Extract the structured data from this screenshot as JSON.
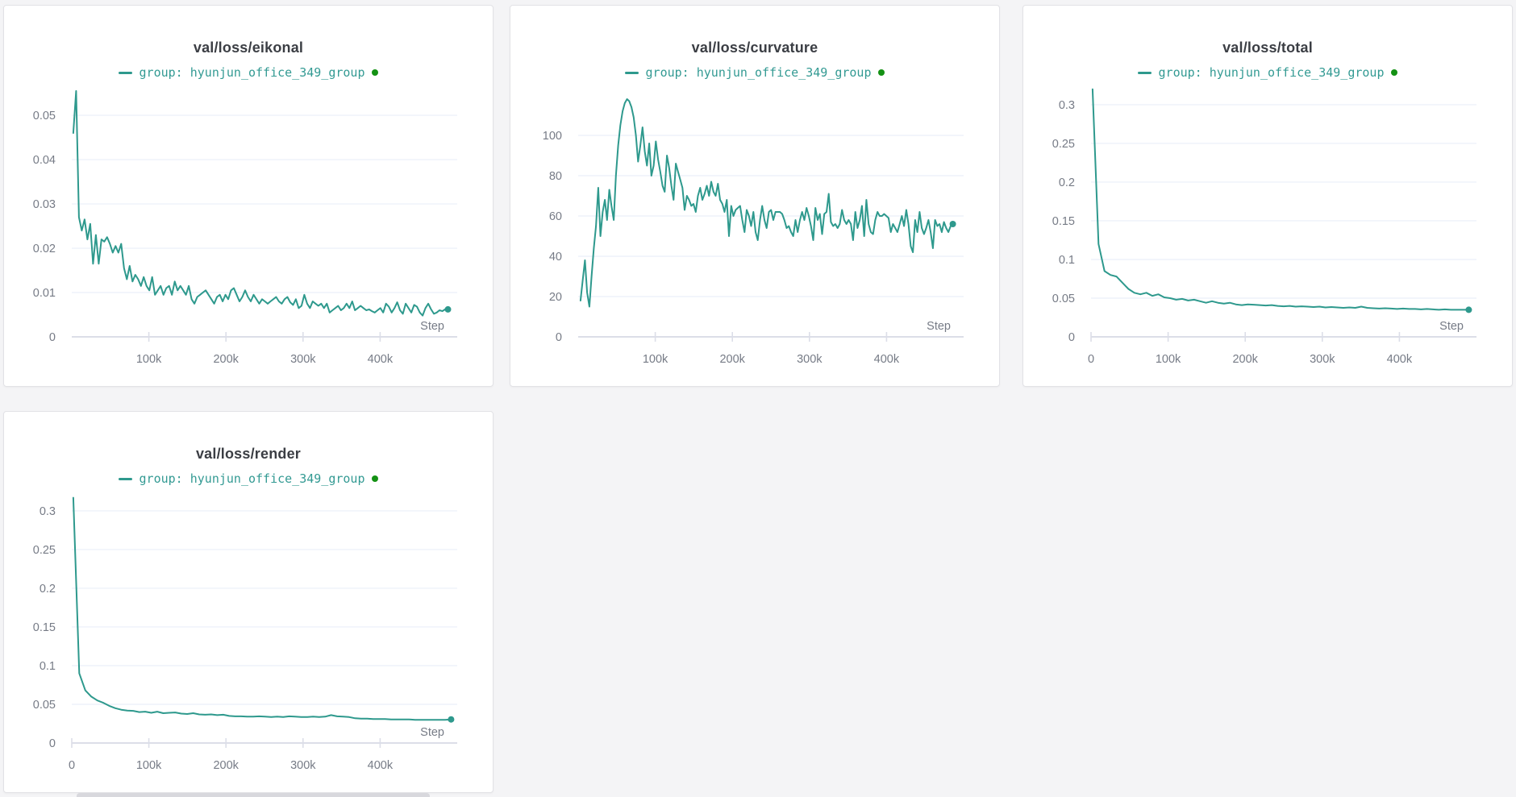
{
  "theme": {
    "line_color": "#2e998d",
    "legend_text_color": "#339a93",
    "legend_dot_color": "#149114",
    "title_color": "#3b3e44",
    "tick_label_color": "#767b86",
    "grid_color": "#edf2fa",
    "axis_color": "#dcdee8",
    "panel_background": "#ffffff",
    "panel_border": "#e2e2e6",
    "page_background": "#f4f4f6"
  },
  "chart_data": [
    {
      "type": "line",
      "title": "val/loss/eikonal",
      "legend": {
        "series_label": "group: hyunjun_office_349_group"
      },
      "xlabel": "Step",
      "grid": true,
      "legend_position": "top-center",
      "xlim": [
        0,
        500000
      ],
      "ylim": [
        0,
        0.0573
      ],
      "x_ticks": [
        {
          "label": "100k",
          "value": 100000
        },
        {
          "label": "200k",
          "value": 200000
        },
        {
          "label": "300k",
          "value": 300000
        },
        {
          "label": "400k",
          "value": 400000
        }
      ],
      "y_ticks": [
        {
          "label": "0",
          "value": 0
        },
        {
          "label": "0.01",
          "value": 0.01
        },
        {
          "label": "0.02",
          "value": 0.02
        },
        {
          "label": "0.03",
          "value": 0.03
        },
        {
          "label": "0.04",
          "value": 0.04
        },
        {
          "label": "0.05",
          "value": 0.05
        }
      ],
      "series": [
        {
          "name": "hyunjun_office_349_group",
          "x_start": 2000,
          "x_end": 488000,
          "y": [
            0.046,
            0.0555,
            0.027,
            0.024,
            0.0265,
            0.022,
            0.0255,
            0.0165,
            0.023,
            0.0165,
            0.022,
            0.0215,
            0.0225,
            0.021,
            0.019,
            0.0205,
            0.019,
            0.021,
            0.0155,
            0.013,
            0.016,
            0.0125,
            0.014,
            0.013,
            0.0115,
            0.0135,
            0.0115,
            0.0105,
            0.0135,
            0.0095,
            0.0105,
            0.0115,
            0.0095,
            0.011,
            0.0115,
            0.0095,
            0.0125,
            0.0105,
            0.0115,
            0.0105,
            0.0095,
            0.0115,
            0.0085,
            0.0075,
            0.009,
            0.0095,
            0.01,
            0.0105,
            0.0095,
            0.0085,
            0.0075,
            0.009,
            0.0095,
            0.008,
            0.0095,
            0.0085,
            0.0105,
            0.011,
            0.0095,
            0.008,
            0.009,
            0.0105,
            0.009,
            0.008,
            0.0095,
            0.0085,
            0.0075,
            0.0085,
            0.008,
            0.0075,
            0.008,
            0.0085,
            0.009,
            0.008,
            0.0075,
            0.0085,
            0.009,
            0.0078,
            0.0072,
            0.0085,
            0.0065,
            0.007,
            0.0095,
            0.0075,
            0.0065,
            0.008,
            0.0075,
            0.007,
            0.0075,
            0.0065,
            0.0075,
            0.0055,
            0.006,
            0.0065,
            0.007,
            0.006,
            0.0065,
            0.0075,
            0.0065,
            0.008,
            0.006,
            0.0065,
            0.007,
            0.0065,
            0.006,
            0.0062,
            0.0058,
            0.0055,
            0.006,
            0.0065,
            0.0055,
            0.0075,
            0.0068,
            0.0055,
            0.0065,
            0.0078,
            0.006,
            0.0052,
            0.0075,
            0.0065,
            0.0055,
            0.0072,
            0.0068,
            0.0055,
            0.0048,
            0.0065,
            0.0075,
            0.0062,
            0.0052,
            0.0055,
            0.006,
            0.0058,
            0.0062,
            0.0062
          ]
        }
      ]
    },
    {
      "type": "line",
      "title": "val/loss/curvature",
      "legend": {
        "series_label": "group: hyunjun_office_349_group"
      },
      "xlabel": "Step",
      "grid": true,
      "legend_position": "top-center",
      "xlim": [
        0,
        500000
      ],
      "ylim": [
        0,
        126
      ],
      "x_ticks": [
        {
          "label": "100k",
          "value": 100000
        },
        {
          "label": "200k",
          "value": 200000
        },
        {
          "label": "300k",
          "value": 300000
        },
        {
          "label": "400k",
          "value": 400000
        }
      ],
      "y_ticks": [
        {
          "label": "0",
          "value": 0
        },
        {
          "label": "20",
          "value": 20
        },
        {
          "label": "40",
          "value": 40
        },
        {
          "label": "60",
          "value": 60
        },
        {
          "label": "80",
          "value": 80
        },
        {
          "label": "100",
          "value": 100
        }
      ],
      "series": [
        {
          "name": "hyunjun_office_349_group",
          "x_start": 3000,
          "x_end": 486000,
          "y": [
            18,
            28,
            38,
            22,
            15,
            30,
            44,
            55,
            74,
            50,
            62,
            68,
            58,
            73,
            65,
            58,
            80,
            95,
            105,
            112,
            116,
            118,
            117,
            114,
            109,
            100,
            87,
            95,
            104,
            92,
            85,
            96,
            80,
            85,
            97,
            88,
            82,
            75,
            72,
            90,
            84,
            75,
            68,
            86,
            82,
            78,
            74,
            63,
            70,
            68,
            65,
            66,
            62,
            70,
            74,
            68,
            71,
            75,
            70,
            77,
            72,
            70,
            76,
            68,
            66,
            62,
            68,
            50,
            65,
            60,
            63,
            64,
            65,
            58,
            52,
            63,
            60,
            55,
            62,
            52,
            48,
            58,
            65,
            58,
            54,
            62,
            63,
            58,
            62,
            62,
            62,
            61,
            58,
            54,
            55,
            52,
            50,
            58,
            52,
            58,
            62,
            58,
            64,
            60,
            55,
            48,
            64,
            58,
            61,
            51,
            61,
            62,
            71,
            57,
            55,
            56,
            54,
            56,
            63,
            58,
            56,
            58,
            56,
            48,
            62,
            54,
            58,
            65,
            50,
            68,
            56,
            52,
            51,
            58,
            62,
            60,
            60,
            61,
            60,
            59,
            52,
            56,
            54,
            52,
            56,
            60,
            55,
            63,
            56,
            45,
            42,
            58,
            52,
            62,
            54,
            51,
            54,
            58,
            52,
            44,
            58,
            55,
            56,
            52,
            57,
            54,
            52,
            55,
            56
          ]
        }
      ]
    },
    {
      "type": "line",
      "title": "val/loss/total",
      "legend": {
        "series_label": "group: hyunjun_office_349_group"
      },
      "xlabel": "Step",
      "grid": true,
      "legend_position": "top-center",
      "xlim": [
        0,
        500000
      ],
      "ylim": [
        0,
        0.328
      ],
      "x_ticks": [
        {
          "label": "0",
          "value": 0
        },
        {
          "label": "100k",
          "value": 100000
        },
        {
          "label": "200k",
          "value": 200000
        },
        {
          "label": "300k",
          "value": 300000
        },
        {
          "label": "400k",
          "value": 400000
        }
      ],
      "y_ticks": [
        {
          "label": "0",
          "value": 0
        },
        {
          "label": "0.05",
          "value": 0.05
        },
        {
          "label": "0.1",
          "value": 0.1
        },
        {
          "label": "0.15",
          "value": 0.15
        },
        {
          "label": "0.2",
          "value": 0.2
        },
        {
          "label": "0.25",
          "value": 0.25
        },
        {
          "label": "0.3",
          "value": 0.3
        }
      ],
      "series": [
        {
          "name": "hyunjun_office_349_group",
          "x_start": 2000,
          "x_end": 490000,
          "y": [
            0.32,
            0.12,
            0.085,
            0.08,
            0.078,
            0.07,
            0.062,
            0.057,
            0.055,
            0.057,
            0.053,
            0.055,
            0.051,
            0.05,
            0.048,
            0.049,
            0.047,
            0.048,
            0.046,
            0.044,
            0.046,
            0.044,
            0.043,
            0.044,
            0.042,
            0.041,
            0.042,
            0.0415,
            0.041,
            0.0405,
            0.041,
            0.04,
            0.0395,
            0.04,
            0.039,
            0.0395,
            0.039,
            0.0385,
            0.039,
            0.038,
            0.0385,
            0.038,
            0.0375,
            0.038,
            0.0375,
            0.039,
            0.0375,
            0.037,
            0.0365,
            0.037,
            0.0365,
            0.036,
            0.0365,
            0.036,
            0.036,
            0.0355,
            0.036,
            0.0355,
            0.035,
            0.0355,
            0.035,
            0.035,
            0.035,
            0.035
          ]
        }
      ]
    },
    {
      "type": "line",
      "title": "val/loss/render",
      "legend": {
        "series_label": "group: hyunjun_office_349_group"
      },
      "xlabel": "Step",
      "grid": true,
      "legend_position": "top-center",
      "xlim": [
        0,
        500000
      ],
      "ylim": [
        0,
        0.328
      ],
      "x_ticks": [
        {
          "label": "0",
          "value": 0
        },
        {
          "label": "100k",
          "value": 100000
        },
        {
          "label": "200k",
          "value": 200000
        },
        {
          "label": "300k",
          "value": 300000
        },
        {
          "label": "400k",
          "value": 400000
        }
      ],
      "y_ticks": [
        {
          "label": "0",
          "value": 0
        },
        {
          "label": "0.05",
          "value": 0.05
        },
        {
          "label": "0.1",
          "value": 0.1
        },
        {
          "label": "0.15",
          "value": 0.15
        },
        {
          "label": "0.2",
          "value": 0.2
        },
        {
          "label": "0.25",
          "value": 0.25
        },
        {
          "label": "0.3",
          "value": 0.3
        }
      ],
      "series": [
        {
          "name": "hyunjun_office_349_group",
          "x_start": 2000,
          "x_end": 492000,
          "y": [
            0.317,
            0.09,
            0.068,
            0.06,
            0.055,
            0.052,
            0.048,
            0.045,
            0.043,
            0.042,
            0.0415,
            0.04,
            0.0405,
            0.039,
            0.0405,
            0.0385,
            0.039,
            0.0395,
            0.038,
            0.0375,
            0.0385,
            0.037,
            0.0365,
            0.037,
            0.036,
            0.0365,
            0.035,
            0.0345,
            0.0345,
            0.034,
            0.034,
            0.0345,
            0.034,
            0.0335,
            0.034,
            0.0335,
            0.0345,
            0.034,
            0.0335,
            0.0335,
            0.034,
            0.0335,
            0.034,
            0.036,
            0.0345,
            0.034,
            0.0335,
            0.032,
            0.0315,
            0.0315,
            0.031,
            0.031,
            0.031,
            0.0305,
            0.0305,
            0.0305,
            0.0305,
            0.03,
            0.03,
            0.03,
            0.03,
            0.03,
            0.03,
            0.0305
          ]
        }
      ]
    }
  ]
}
